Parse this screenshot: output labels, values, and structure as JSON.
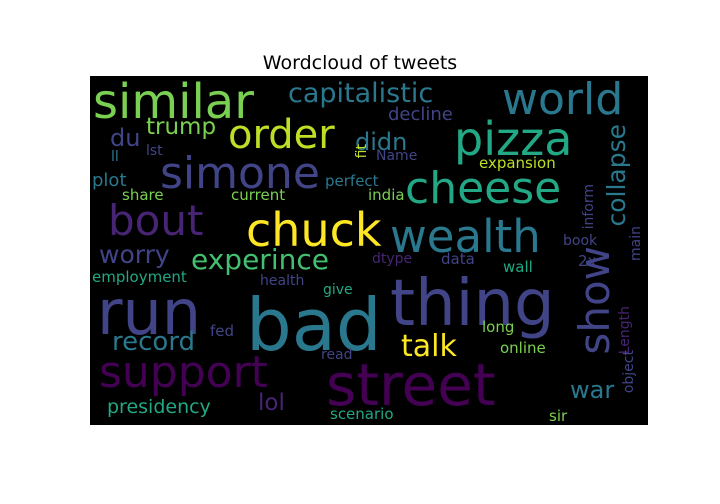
{
  "chart_data": {
    "type": "wordcloud",
    "title": "Wordcloud of tweets",
    "background": "#000000",
    "words": [
      {
        "text": "bad",
        "color": "#2a788e"
      },
      {
        "text": "thing",
        "color": "#414487"
      },
      {
        "text": "street",
        "color": "#440154"
      },
      {
        "text": "run",
        "color": "#414487"
      },
      {
        "text": "chuck",
        "color": "#fde725"
      },
      {
        "text": "similar",
        "color": "#7ad151"
      },
      {
        "text": "wealth",
        "color": "#2a788e"
      },
      {
        "text": "cheese",
        "color": "#22a884"
      },
      {
        "text": "pizza",
        "color": "#22a884"
      },
      {
        "text": "world",
        "color": "#2a788e"
      },
      {
        "text": "order",
        "color": "#bddf26"
      },
      {
        "text": "simone",
        "color": "#414487"
      },
      {
        "text": "bout",
        "color": "#482475"
      },
      {
        "text": "support",
        "color": "#440154"
      },
      {
        "text": "show",
        "color": "#414487"
      },
      {
        "text": "experince",
        "color": "#44bf70"
      },
      {
        "text": "capitalistic",
        "color": "#2a788e"
      },
      {
        "text": "talk",
        "color": "#fde725"
      },
      {
        "text": "collapse",
        "color": "#2a788e"
      },
      {
        "text": "record",
        "color": "#2a788e"
      },
      {
        "text": "worry",
        "color": "#414487"
      },
      {
        "text": "trump",
        "color": "#7ad151"
      },
      {
        "text": "didn",
        "color": "#2a788e"
      },
      {
        "text": "lol",
        "color": "#482475"
      },
      {
        "text": "war",
        "color": "#2a788e"
      },
      {
        "text": "presidency",
        "color": "#22a884"
      },
      {
        "text": "du",
        "color": "#414487"
      },
      {
        "text": "decline",
        "color": "#414487"
      },
      {
        "text": "plot",
        "color": "#2a788e"
      },
      {
        "text": "expansion",
        "color": "#bddf26"
      },
      {
        "text": "employment",
        "color": "#22a884"
      },
      {
        "text": "current",
        "color": "#7ad151"
      },
      {
        "text": "perfect",
        "color": "#2a788e"
      },
      {
        "text": "india",
        "color": "#7ad151"
      },
      {
        "text": "share",
        "color": "#7ad151"
      },
      {
        "text": "inform",
        "color": "#414487"
      },
      {
        "text": "book",
        "color": "#414487"
      },
      {
        "text": "main",
        "color": "#414487"
      },
      {
        "text": "data",
        "color": "#414487"
      },
      {
        "text": "dtype",
        "color": "#482475"
      },
      {
        "text": "wall",
        "color": "#22a884"
      },
      {
        "text": "2x",
        "color": "#414487"
      },
      {
        "text": "health",
        "color": "#414487"
      },
      {
        "text": "give",
        "color": "#22a884"
      },
      {
        "text": "long",
        "color": "#7ad151"
      },
      {
        "text": "online",
        "color": "#7ad151"
      },
      {
        "text": "fed",
        "color": "#414487"
      },
      {
        "text": "read",
        "color": "#414487"
      },
      {
        "text": "scenario",
        "color": "#22a884"
      },
      {
        "text": "sir",
        "color": "#7ad151"
      },
      {
        "text": "ll",
        "color": "#2a788e"
      },
      {
        "text": "lst",
        "color": "#414487"
      },
      {
        "text": "fit",
        "color": "#bddf26"
      },
      {
        "text": "Name",
        "color": "#414487"
      },
      {
        "text": "Length",
        "color": "#482475"
      },
      {
        "text": "object",
        "color": "#414487"
      }
    ]
  }
}
